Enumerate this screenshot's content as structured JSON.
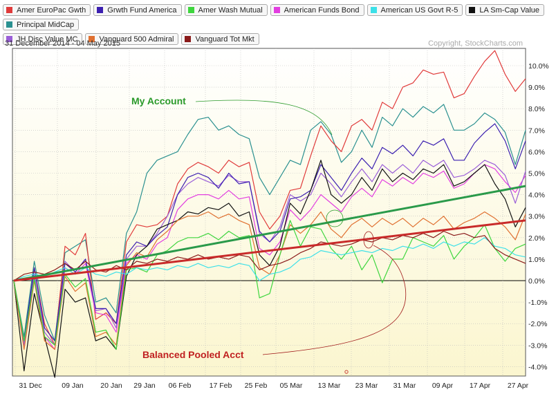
{
  "subtitle": "31 December 2014 - 04 May 2015",
  "copyright": "Copyright, StockCharts.com",
  "legend": [
    {
      "name": "Amer EuroPac Gwth",
      "color": "#e03a3a"
    },
    {
      "name": "Grwth Fund America",
      "color": "#3b1fb0"
    },
    {
      "name": "Amer Wash Mutual",
      "color": "#3ed63e"
    },
    {
      "name": "American Funds Bond",
      "color": "#e23ee0"
    },
    {
      "name": "American US Govt R-5",
      "color": "#3ce0e8"
    },
    {
      "name": "LA Sm-Cap Value",
      "color": "#111111"
    },
    {
      "name": "Principal MidCap",
      "color": "#2a9090"
    },
    {
      "name": "JH Disc Value MC",
      "color": "#9a5ed8"
    },
    {
      "name": "Vanguard 500 Admiral",
      "color": "#e07030"
    },
    {
      "name": "Vanguard Tot Mkt",
      "color": "#8a1a1a"
    }
  ],
  "chart_data": {
    "type": "line",
    "title": "",
    "xlabel": "",
    "ylabel": "",
    "x_tick_labels": [
      "31 Dec",
      "09 Jan",
      "20 Jan",
      "29 Jan",
      "06 Feb",
      "17 Feb",
      "25 Feb",
      "05 Mar",
      "13 Mar",
      "23 Mar",
      "31 Mar",
      "09 Apr",
      "17 Apr",
      "27 Apr"
    ],
    "y_tick_labels": [
      "10.0%",
      "9.0%",
      "8.0%",
      "7.0%",
      "6.0%",
      "5.0%",
      "4.0%",
      "3.0%",
      "2.0%",
      "1.0%",
      "0.0%",
      "-1.0%",
      "-2.0%",
      "-3.0%",
      "-4.0%"
    ],
    "ylim": [
      -4.8,
      11.0
    ],
    "grid": true,
    "annotations": [
      {
        "text": "My Account",
        "color": "#2a9a2a"
      },
      {
        "text": "Balanced Pooled Acct",
        "color": "#c02020"
      }
    ],
    "trend_lines": [
      {
        "name": "My Account",
        "color": "#2a9a4a",
        "start": 0.0,
        "end": 4.4
      },
      {
        "name": "Balanced Pooled Acct",
        "color": "#c82a2a",
        "start": 0.0,
        "end": 2.8
      }
    ],
    "series": [
      {
        "name": "Amer EuroPac Gwth",
        "values": [
          0.0,
          -3.0,
          0.6,
          -2.0,
          -3.0,
          1.6,
          1.2,
          2.2,
          -1.8,
          -1.5,
          -2.0,
          1.8,
          2.6,
          2.5,
          2.6,
          3.0,
          4.5,
          5.2,
          5.5,
          5.3,
          5.0,
          5.6,
          5.3,
          5.5,
          3.2,
          2.4,
          3.0,
          4.2,
          4.3,
          5.8,
          7.2,
          6.5,
          6.0,
          7.2,
          7.5,
          7.0,
          8.3,
          8.0,
          9.0,
          9.2,
          9.8,
          9.6,
          9.7,
          8.5,
          8.7,
          9.5,
          10.2,
          10.7,
          9.6,
          8.8,
          9.4
        ]
      },
      {
        "name": "Grwth Fund America",
        "values": [
          0.0,
          -2.8,
          0.6,
          -2.2,
          -2.8,
          0.8,
          0.4,
          1.0,
          -1.3,
          -1.3,
          -2.0,
          1.2,
          1.8,
          1.6,
          2.1,
          2.5,
          4.0,
          4.8,
          5.0,
          4.8,
          4.3,
          5.0,
          4.5,
          4.6,
          2.3,
          1.8,
          2.3,
          3.8,
          3.9,
          4.2,
          5.4,
          4.8,
          4.2,
          5.0,
          5.7,
          5.2,
          6.2,
          5.9,
          6.3,
          5.8,
          6.5,
          6.3,
          6.6,
          5.6,
          5.6,
          6.4,
          6.9,
          7.3,
          6.5,
          5.2,
          6.5
        ]
      },
      {
        "name": "Amer Wash Mutual",
        "values": [
          0.0,
          -2.8,
          0.1,
          -2.6,
          -3.0,
          0.3,
          -0.3,
          0.1,
          -2.4,
          -2.3,
          -3.2,
          0.5,
          0.6,
          0.4,
          1.2,
          1.4,
          1.8,
          2.0,
          2.0,
          2.2,
          1.9,
          2.3,
          2.0,
          2.1,
          -0.8,
          -0.6,
          1.2,
          2.8,
          1.6,
          2.5,
          2.4,
          1.5,
          1.0,
          1.6,
          0.5,
          1.2,
          -0.1,
          1.0,
          1.0,
          2.0,
          1.8,
          1.6,
          2.1,
          1.0,
          1.6,
          2.0,
          2.6,
          1.5,
          0.9,
          1.5,
          1.7
        ]
      },
      {
        "name": "American Funds Bond",
        "values": [
          0.0,
          -3.0,
          0.2,
          -2.6,
          -3.2,
          0.6,
          0.3,
          0.8,
          -1.5,
          -1.6,
          -2.4,
          0.8,
          1.2,
          1.0,
          1.7,
          2.0,
          3.3,
          3.8,
          4.0,
          4.0,
          3.8,
          4.2,
          3.8,
          3.9,
          1.5,
          1.2,
          1.8,
          3.3,
          2.8,
          3.3,
          4.0,
          3.6,
          3.2,
          3.9,
          4.3,
          3.9,
          4.7,
          4.4,
          4.8,
          4.5,
          5.0,
          4.8,
          5.1,
          4.3,
          4.5,
          5.0,
          5.4,
          5.2,
          4.6,
          4.1,
          4.9
        ]
      },
      {
        "name": "American US Govt R-5",
        "values": [
          0.0,
          0.2,
          0.3,
          0.2,
          0.4,
          0.6,
          0.3,
          0.6,
          0.3,
          0.2,
          0.4,
          0.3,
          0.6,
          0.5,
          0.6,
          0.5,
          0.7,
          0.6,
          0.8,
          0.6,
          0.7,
          0.6,
          0.8,
          0.7,
          0.0,
          0.3,
          0.4,
          0.6,
          1.0,
          1.1,
          1.4,
          1.3,
          1.2,
          1.3,
          1.4,
          1.3,
          1.5,
          1.4,
          1.6,
          1.5,
          1.7,
          1.5,
          1.8,
          1.6,
          1.8,
          1.7,
          2.0,
          1.6,
          1.5,
          1.2,
          1.1
        ]
      },
      {
        "name": "LA Sm-Cap Value",
        "values": [
          0.0,
          -4.2,
          -0.6,
          -2.6,
          -4.5,
          -0.4,
          -1.0,
          -0.8,
          -2.8,
          -2.6,
          -3.2,
          0.2,
          1.2,
          1.6,
          2.4,
          2.6,
          2.8,
          3.2,
          3.1,
          3.4,
          3.3,
          3.6,
          3.0,
          3.2,
          1.2,
          0.7,
          1.6,
          3.6,
          3.1,
          4.2,
          5.6,
          4.0,
          3.6,
          4.0,
          4.8,
          4.2,
          5.2,
          4.6,
          5.0,
          4.7,
          5.2,
          5.0,
          5.4,
          4.4,
          4.6,
          5.0,
          5.4,
          4.5,
          3.8,
          2.5,
          3.4
        ]
      },
      {
        "name": "Principal MidCap",
        "values": [
          0.0,
          -2.6,
          0.9,
          -1.6,
          -2.8,
          1.3,
          1.6,
          1.9,
          -1.0,
          -0.8,
          -1.5,
          2.2,
          3.2,
          5.0,
          5.6,
          5.8,
          6.0,
          6.8,
          7.5,
          7.6,
          7.0,
          7.2,
          6.8,
          6.6,
          4.8,
          4.0,
          4.8,
          5.6,
          5.4,
          7.0,
          7.4,
          6.8,
          5.5,
          6.0,
          7.0,
          6.2,
          7.6,
          7.2,
          8.0,
          7.6,
          8.1,
          7.8,
          8.2,
          7.0,
          7.0,
          7.3,
          7.8,
          7.5,
          6.9,
          5.4,
          7.0
        ]
      },
      {
        "name": "JH Disc Value MC",
        "values": [
          0.0,
          -3.0,
          0.3,
          -2.4,
          -3.0,
          0.9,
          0.4,
          1.0,
          -1.4,
          -1.3,
          -2.2,
          1.0,
          1.6,
          1.6,
          2.2,
          3.0,
          4.0,
          4.5,
          4.8,
          4.6,
          4.4,
          4.9,
          4.6,
          4.6,
          2.2,
          1.8,
          2.5,
          4.0,
          3.7,
          4.0,
          5.0,
          4.5,
          3.9,
          4.6,
          5.2,
          4.6,
          5.4,
          5.0,
          5.4,
          5.0,
          5.6,
          5.3,
          5.6,
          4.8,
          4.9,
          5.2,
          5.6,
          5.4,
          4.9,
          3.6,
          5.1
        ]
      },
      {
        "name": "Vanguard 500 Admiral",
        "values": [
          0.0,
          -3.2,
          0.0,
          -2.8,
          -3.2,
          0.2,
          -0.5,
          -0.1,
          -2.6,
          -2.4,
          -3.0,
          0.7,
          1.3,
          1.1,
          1.9,
          2.3,
          2.8,
          3.0,
          3.0,
          3.2,
          2.9,
          3.1,
          2.8,
          2.6,
          0.6,
          0.3,
          1.2,
          2.6,
          2.2,
          2.6,
          3.2,
          2.4,
          2.0,
          2.6,
          2.9,
          2.5,
          2.9,
          2.6,
          2.9,
          2.5,
          2.9,
          2.6,
          3.0,
          2.4,
          2.7,
          2.9,
          3.2,
          2.9,
          2.5,
          1.9,
          3.1
        ]
      },
      {
        "name": "Vanguard Tot Mkt",
        "values": [
          0.0,
          0.3,
          0.4,
          0.3,
          0.5,
          0.8,
          0.5,
          0.9,
          0.5,
          0.4,
          0.7,
          0.5,
          0.9,
          0.8,
          1.0,
          0.9,
          1.1,
          1.0,
          1.2,
          1.0,
          1.1,
          1.0,
          1.2,
          1.1,
          0.5,
          0.7,
          0.8,
          1.0,
          1.3,
          1.5,
          1.8,
          1.7,
          1.6,
          1.7,
          1.9,
          1.8,
          2.0,
          1.9,
          2.1,
          2.0,
          2.2,
          2.0,
          2.3,
          2.1,
          2.2,
          2.0,
          2.1,
          1.5,
          1.2,
          1.0,
          0.8
        ]
      }
    ]
  }
}
